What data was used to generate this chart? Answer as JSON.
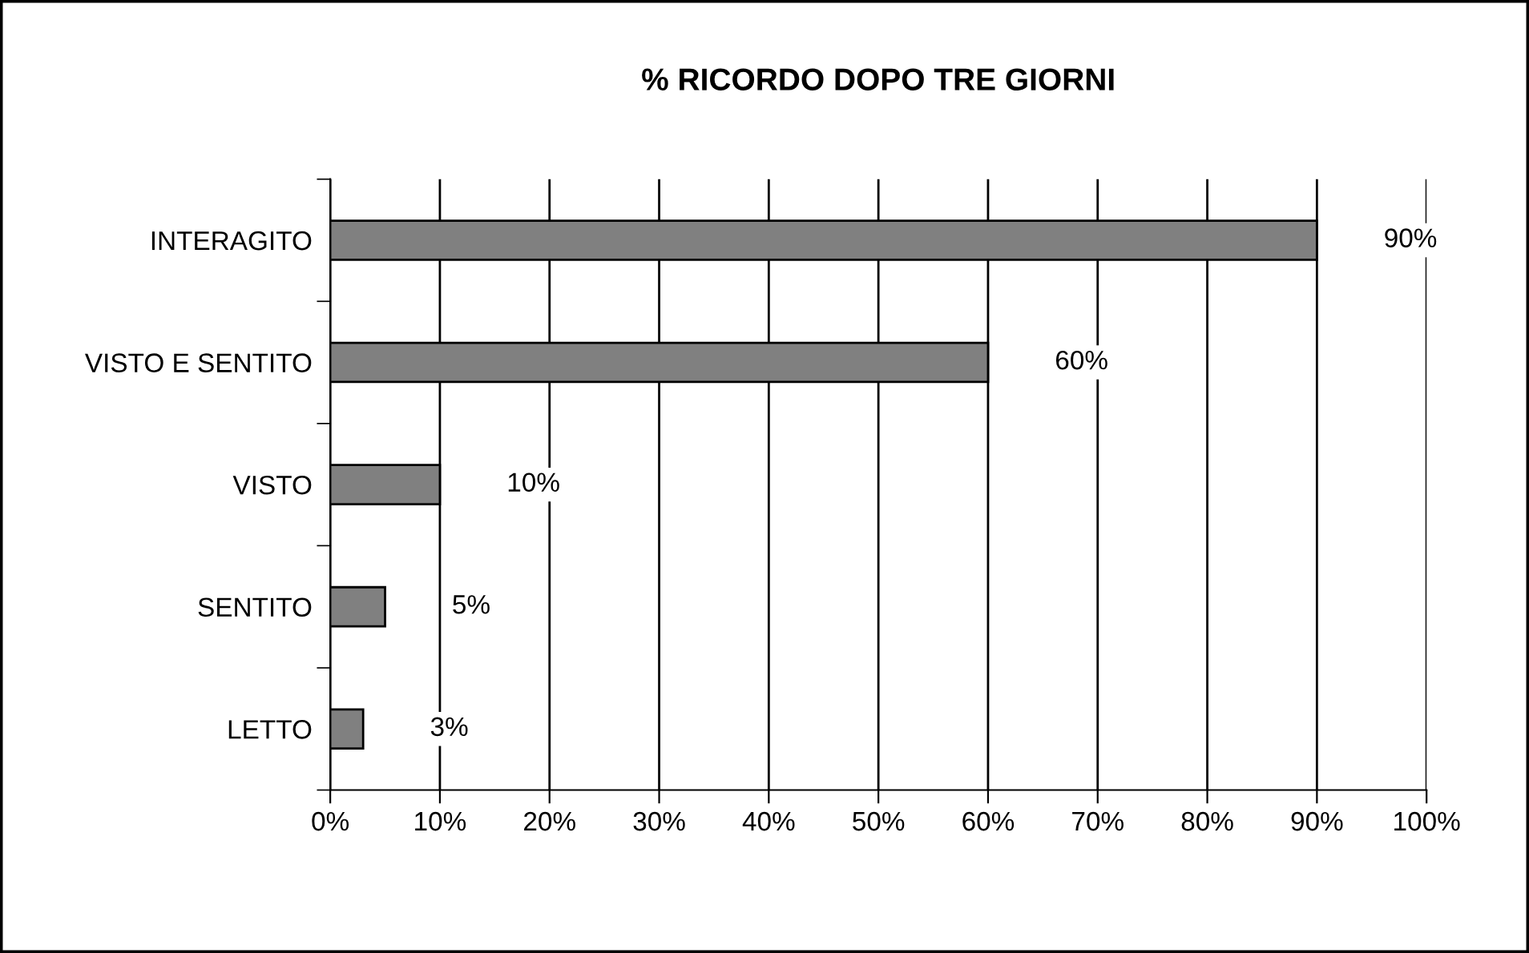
{
  "chart_data": {
    "type": "bar",
    "orientation": "horizontal",
    "title": "% RICORDO DOPO TRE GIORNI",
    "categories": [
      "INTERAGITO",
      "VISTO E SENTITO",
      "VISTO",
      "SENTITO",
      "LETTO"
    ],
    "values": [
      90,
      60,
      10,
      5,
      3
    ],
    "color": "#808080",
    "value_labels": [
      "90%",
      "60%",
      "10%",
      "5%",
      "3%"
    ],
    "xlim": [
      0,
      100
    ],
    "xticks": [
      {
        "value": 0,
        "label": "0%"
      },
      {
        "value": 10,
        "label": "10%"
      },
      {
        "value": 20,
        "label": "20%"
      },
      {
        "value": 30,
        "label": "30%"
      },
      {
        "value": 40,
        "label": "40%"
      },
      {
        "value": 50,
        "label": "50%"
      },
      {
        "value": 60,
        "label": "60%"
      },
      {
        "value": 70,
        "label": "70%"
      },
      {
        "value": 80,
        "label": "80%"
      },
      {
        "value": 90,
        "label": "90%"
      },
      {
        "value": 100,
        "label": "100%"
      }
    ],
    "grid": "x",
    "legend": false
  }
}
